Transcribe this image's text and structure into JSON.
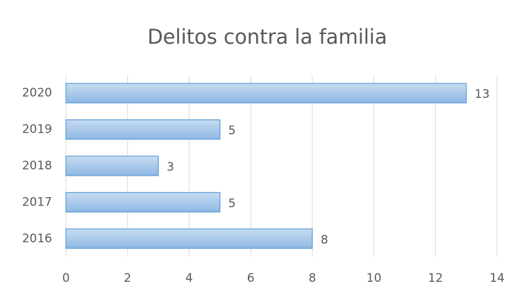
{
  "chart_data": {
    "type": "bar",
    "orientation": "horizontal",
    "title": "Delitos contra la familia",
    "categories": [
      "2020",
      "2019",
      "2018",
      "2017",
      "2016"
    ],
    "values": [
      13,
      5,
      3,
      5,
      8
    ],
    "color": "#9dc3e6",
    "xlim": [
      0,
      14
    ],
    "xticks": [
      0,
      2,
      4,
      6,
      8,
      10,
      12,
      14
    ],
    "grid": true
  }
}
